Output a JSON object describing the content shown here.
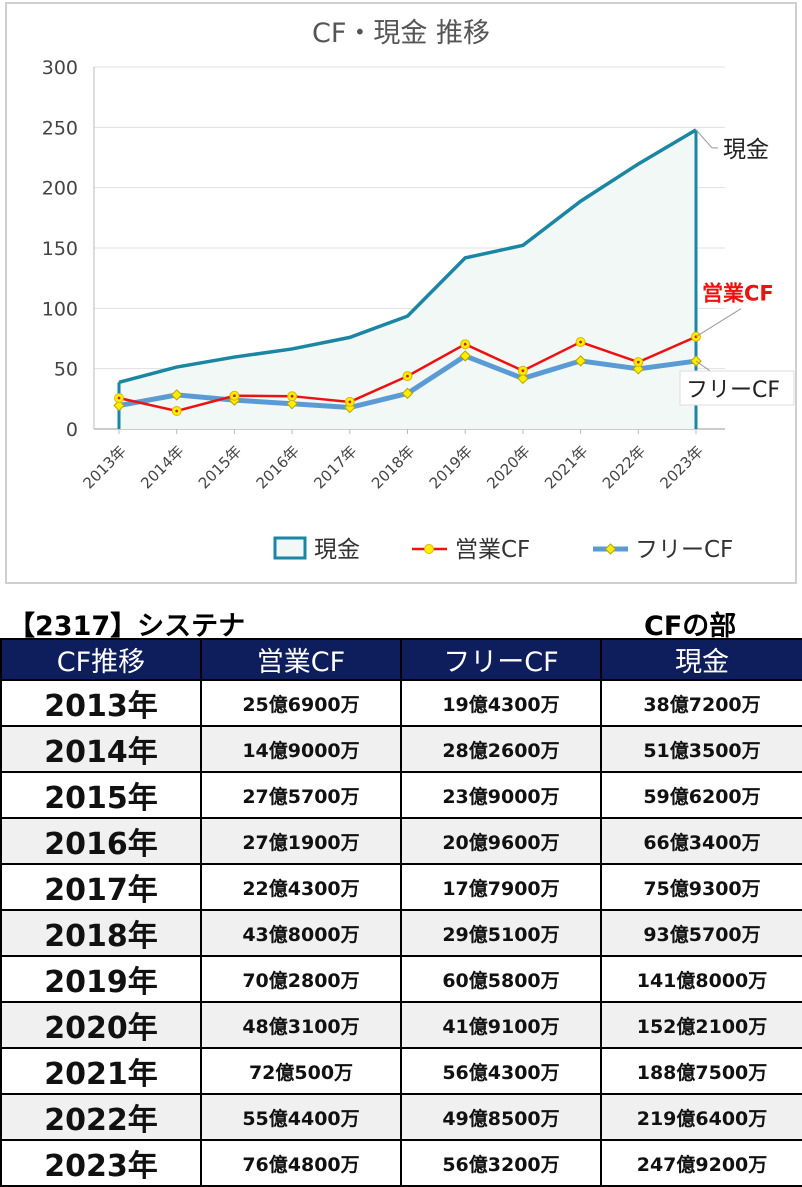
{
  "chart_data": {
    "type": "line",
    "title": "CF・現金 推移",
    "categories": [
      "2013年",
      "2014年",
      "2015年",
      "2016年",
      "2017年",
      "2018年",
      "2019年",
      "2020年",
      "2021年",
      "2022年",
      "2023年"
    ],
    "ylim": [
      0,
      300
    ],
    "yticks": [
      0,
      50,
      100,
      150,
      200,
      250,
      300
    ],
    "grid": true,
    "legend_position": "bottom",
    "series": [
      {
        "name": "現金",
        "style": "area",
        "color": "#1b86a3",
        "fill": "#f1f8f5",
        "values": [
          38.72,
          51.35,
          59.62,
          66.34,
          75.93,
          93.57,
          141.8,
          152.21,
          188.75,
          219.64,
          247.92
        ],
        "end_label": "現金",
        "end_label_color": "#222222"
      },
      {
        "name": "営業CF",
        "style": "line-marker",
        "color": "#ee1111",
        "marker_color": "#ffee00",
        "values": [
          25.69,
          14.9,
          27.57,
          27.19,
          22.43,
          43.8,
          70.28,
          48.31,
          72.05,
          55.44,
          76.48
        ],
        "end_label": "営業CF",
        "end_label_color": "#ee1111"
      },
      {
        "name": "フリーCF",
        "style": "line-diamond",
        "color": "#5b9bd5",
        "marker_color": "#ffee00",
        "values": [
          19.43,
          28.26,
          23.9,
          20.96,
          17.79,
          29.51,
          60.58,
          41.91,
          56.43,
          49.85,
          56.32
        ],
        "end_label": "フリーCF",
        "end_label_color": "#222222"
      }
    ]
  },
  "company_title": "【2317】システナ",
  "section_title": "CFの部",
  "table": {
    "headers": [
      "CF推移",
      "営業CF",
      "フリーCF",
      "現金"
    ],
    "rows": [
      [
        "2013年",
        "25億6900万",
        "19億4300万",
        "38億7200万"
      ],
      [
        "2014年",
        "14億9000万",
        "28億2600万",
        "51億3500万"
      ],
      [
        "2015年",
        "27億5700万",
        "23億9000万",
        "59億6200万"
      ],
      [
        "2016年",
        "27億1900万",
        "20億9600万",
        "66億3400万"
      ],
      [
        "2017年",
        "22億4300万",
        "17億7900万",
        "75億9300万"
      ],
      [
        "2018年",
        "43億8000万",
        "29億5100万",
        "93億5700万"
      ],
      [
        "2019年",
        "70億2800万",
        "60億5800万",
        "141億8000万"
      ],
      [
        "2020年",
        "48億3100万",
        "41億9100万",
        "152億2100万"
      ],
      [
        "2021年",
        "72億500万",
        "56億4300万",
        "188億7500万"
      ],
      [
        "2022年",
        "55億4400万",
        "49億8500万",
        "219億6400万"
      ],
      [
        "2023年",
        "76億4800万",
        "56億3200万",
        "247億9200万"
      ]
    ]
  }
}
